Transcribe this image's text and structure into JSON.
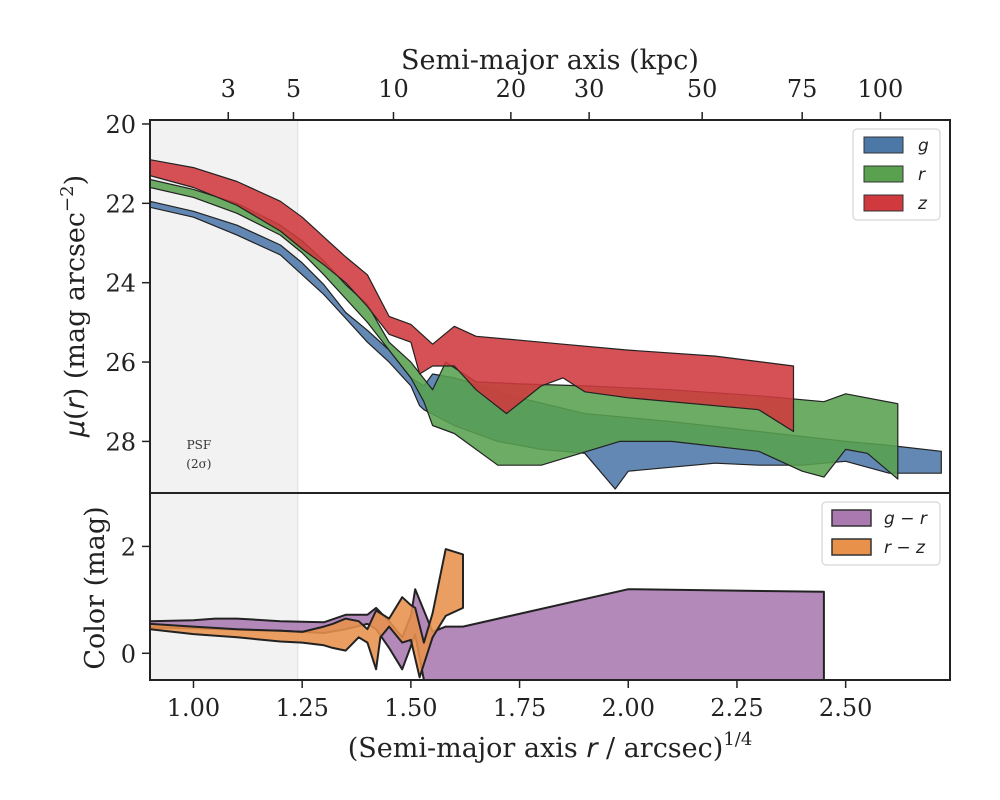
{
  "chart_data": [
    {
      "type": "area",
      "panel": "surface-brightness",
      "title": "",
      "xlabel": "(Semi-major axis r / arcsec)^1/4",
      "ylabel": "μ(r) (mag arcsec^-2)",
      "top_xlabel": "Semi-major axis (kpc)",
      "xlim": [
        0.9,
        2.74
      ],
      "ylim": [
        29.3,
        19.9
      ],
      "y_inverted": true,
      "yticks": [
        20,
        22,
        24,
        26,
        28
      ],
      "top_ticks": [
        {
          "label": "3",
          "x": 1.08
        },
        {
          "label": "5",
          "x": 1.23
        },
        {
          "label": "10",
          "x": 1.46
        },
        {
          "label": "20",
          "x": 1.73
        },
        {
          "label": "30",
          "x": 1.91
        },
        {
          "label": "50",
          "x": 2.17
        },
        {
          "label": "75",
          "x": 2.4
        },
        {
          "label": "100",
          "x": 2.58
        }
      ],
      "psf_band": {
        "x": [
          0.9,
          1.24
        ],
        "label_line1": "PSF",
        "label_line2": "(2σ)"
      },
      "legend": "top-right",
      "series": [
        {
          "name": "g",
          "color": "#4c78a8",
          "upper": [
            [
              0.9,
              21.95
            ],
            [
              1.0,
              22.2
            ],
            [
              1.1,
              22.55
            ],
            [
              1.2,
              23.05
            ],
            [
              1.25,
              23.5
            ],
            [
              1.3,
              24.05
            ],
            [
              1.35,
              24.75
            ],
            [
              1.4,
              25.2
            ],
            [
              1.45,
              25.7
            ],
            [
              1.5,
              26.4
            ],
            [
              1.53,
              26.6
            ],
            [
              1.55,
              26.3
            ],
            [
              1.6,
              26.4
            ],
            [
              1.75,
              26.9
            ],
            [
              1.9,
              27.3
            ],
            [
              2.1,
              27.5
            ],
            [
              2.3,
              27.75
            ],
            [
              2.5,
              28.0
            ],
            [
              2.6,
              28.1
            ],
            [
              2.72,
              28.25
            ]
          ],
          "lower": [
            [
              2.72,
              28.8
            ],
            [
              2.6,
              28.8
            ],
            [
              2.5,
              28.5
            ],
            [
              2.45,
              28.55
            ],
            [
              2.4,
              28.6
            ],
            [
              2.3,
              28.6
            ],
            [
              2.2,
              28.55
            ],
            [
              2.1,
              28.65
            ],
            [
              2.0,
              28.75
            ],
            [
              1.97,
              29.2
            ],
            [
              1.9,
              28.3
            ],
            [
              1.8,
              28.2
            ],
            [
              1.7,
              28.0
            ],
            [
              1.6,
              27.6
            ],
            [
              1.53,
              27.2
            ],
            [
              1.52,
              27.1
            ],
            [
              1.5,
              26.6
            ],
            [
              1.45,
              26.0
            ],
            [
              1.4,
              25.5
            ],
            [
              1.35,
              24.9
            ],
            [
              1.3,
              24.3
            ],
            [
              1.25,
              23.8
            ],
            [
              1.2,
              23.3
            ],
            [
              1.1,
              22.8
            ],
            [
              1.0,
              22.35
            ],
            [
              0.9,
              22.1
            ]
          ]
        },
        {
          "name": "r",
          "color": "#59a14f",
          "upper": [
            [
              0.9,
              21.4
            ],
            [
              1.0,
              21.65
            ],
            [
              1.1,
              22.0
            ],
            [
              1.2,
              22.55
            ],
            [
              1.25,
              22.95
            ],
            [
              1.3,
              23.45
            ],
            [
              1.35,
              24.05
            ],
            [
              1.4,
              24.55
            ],
            [
              1.45,
              25.5
            ],
            [
              1.5,
              26.0
            ],
            [
              1.55,
              26.7
            ],
            [
              1.58,
              26.0
            ],
            [
              1.65,
              26.5
            ],
            [
              1.75,
              26.55
            ],
            [
              1.9,
              26.6
            ],
            [
              2.1,
              26.7
            ],
            [
              2.3,
              26.85
            ],
            [
              2.45,
              27.0
            ],
            [
              2.5,
              26.8
            ],
            [
              2.62,
              27.05
            ]
          ],
          "lower": [
            [
              2.62,
              28.95
            ],
            [
              2.55,
              28.3
            ],
            [
              2.5,
              28.2
            ],
            [
              2.45,
              28.9
            ],
            [
              2.4,
              28.75
            ],
            [
              2.3,
              28.25
            ],
            [
              2.1,
              28.0
            ],
            [
              1.98,
              28.0
            ],
            [
              1.8,
              28.6
            ],
            [
              1.7,
              28.6
            ],
            [
              1.6,
              27.8
            ],
            [
              1.55,
              27.6
            ],
            [
              1.53,
              27.0
            ],
            [
              1.5,
              26.4
            ],
            [
              1.45,
              25.7
            ],
            [
              1.4,
              25.0
            ],
            [
              1.35,
              24.4
            ],
            [
              1.3,
              23.8
            ],
            [
              1.25,
              23.25
            ],
            [
              1.2,
              22.8
            ],
            [
              1.1,
              22.25
            ],
            [
              1.0,
              21.85
            ],
            [
              0.9,
              21.6
            ]
          ]
        },
        {
          "name": "z",
          "color": "#d0393e",
          "upper": [
            [
              0.9,
              20.9
            ],
            [
              1.0,
              21.1
            ],
            [
              1.1,
              21.45
            ],
            [
              1.2,
              21.95
            ],
            [
              1.25,
              22.35
            ],
            [
              1.3,
              22.85
            ],
            [
              1.35,
              23.35
            ],
            [
              1.4,
              23.8
            ],
            [
              1.45,
              24.85
            ],
            [
              1.5,
              25.05
            ],
            [
              1.55,
              25.55
            ],
            [
              1.6,
              25.1
            ],
            [
              1.65,
              25.35
            ],
            [
              1.75,
              25.45
            ],
            [
              1.85,
              25.55
            ],
            [
              2.0,
              25.7
            ],
            [
              2.2,
              25.85
            ],
            [
              2.38,
              26.1
            ]
          ],
          "lower": [
            [
              2.38,
              27.75
            ],
            [
              2.3,
              27.2
            ],
            [
              2.0,
              26.9
            ],
            [
              1.9,
              26.75
            ],
            [
              1.85,
              26.4
            ],
            [
              1.8,
              26.6
            ],
            [
              1.72,
              27.3
            ],
            [
              1.65,
              26.7
            ],
            [
              1.6,
              26.1
            ],
            [
              1.55,
              26.1
            ],
            [
              1.52,
              26.3
            ],
            [
              1.5,
              25.5
            ],
            [
              1.45,
              25.3
            ],
            [
              1.4,
              24.6
            ],
            [
              1.35,
              24.0
            ],
            [
              1.3,
              23.55
            ],
            [
              1.25,
              23.15
            ],
            [
              1.2,
              22.7
            ],
            [
              1.1,
              22.05
            ],
            [
              1.0,
              21.6
            ],
            [
              0.9,
              21.3
            ]
          ]
        }
      ]
    },
    {
      "type": "area",
      "panel": "color",
      "title": "",
      "xlabel": "(Semi-major axis r / arcsec)^1/4",
      "ylabel": "Color (mag)",
      "xlim": [
        0.9,
        2.74
      ],
      "ylim": [
        -0.5,
        3.0
      ],
      "yticks": [
        0,
        2
      ],
      "xticks": [
        1.0,
        1.25,
        1.5,
        1.75,
        2.0,
        2.25,
        2.5
      ],
      "xtick_labels": [
        "1.00",
        "1.25",
        "1.50",
        "1.75",
        "2.00",
        "2.25",
        "2.50"
      ],
      "legend": "top-right",
      "series": [
        {
          "name": "g − r",
          "color": "#a979b0",
          "upper": [
            [
              0.9,
              0.6
            ],
            [
              1.0,
              0.62
            ],
            [
              1.05,
              0.65
            ],
            [
              1.1,
              0.65
            ],
            [
              1.2,
              0.6
            ],
            [
              1.3,
              0.58
            ],
            [
              1.35,
              0.72
            ],
            [
              1.4,
              0.72
            ],
            [
              1.42,
              0.85
            ],
            [
              1.45,
              0.6
            ],
            [
              1.48,
              0.3
            ],
            [
              1.5,
              0.7
            ],
            [
              1.51,
              1.2
            ],
            [
              1.55,
              0.4
            ],
            [
              1.58,
              0.5
            ],
            [
              1.62,
              0.5
            ],
            [
              2.0,
              1.2
            ],
            [
              2.45,
              1.15
            ]
          ],
          "lower": [
            [
              2.45,
              -0.5
            ],
            [
              1.53,
              -0.5
            ],
            [
              1.51,
              0.35
            ],
            [
              1.48,
              -0.3
            ],
            [
              1.45,
              0.1
            ],
            [
              1.42,
              0.45
            ],
            [
              1.4,
              0.55
            ],
            [
              1.35,
              0.45
            ],
            [
              1.3,
              0.38
            ],
            [
              1.2,
              0.42
            ],
            [
              1.1,
              0.44
            ],
            [
              1.0,
              0.47
            ],
            [
              0.9,
              0.48
            ]
          ]
        },
        {
          "name": "r − z",
          "color": "#e8914b",
          "upper": [
            [
              0.9,
              0.55
            ],
            [
              1.0,
              0.5
            ],
            [
              1.1,
              0.45
            ],
            [
              1.2,
              0.42
            ],
            [
              1.25,
              0.4
            ],
            [
              1.3,
              0.5
            ],
            [
              1.32,
              0.55
            ],
            [
              1.35,
              0.65
            ],
            [
              1.38,
              0.6
            ],
            [
              1.4,
              0.45
            ],
            [
              1.42,
              0.8
            ],
            [
              1.45,
              0.65
            ],
            [
              1.48,
              1.05
            ],
            [
              1.5,
              0.9
            ],
            [
              1.51,
              0.85
            ],
            [
              1.53,
              0.2
            ],
            [
              1.55,
              0.75
            ],
            [
              1.58,
              1.95
            ],
            [
              1.62,
              1.85
            ]
          ],
          "lower": [
            [
              1.62,
              0.85
            ],
            [
              1.58,
              0.7
            ],
            [
              1.55,
              0.3
            ],
            [
              1.52,
              -0.45
            ],
            [
              1.5,
              0.25
            ],
            [
              1.48,
              0.2
            ],
            [
              1.45,
              0.5
            ],
            [
              1.43,
              0.3
            ],
            [
              1.42,
              -0.3
            ],
            [
              1.4,
              0.2
            ],
            [
              1.38,
              0.3
            ],
            [
              1.35,
              0.05
            ],
            [
              1.32,
              0.1
            ],
            [
              1.3,
              0.15
            ],
            [
              1.25,
              0.2
            ],
            [
              1.2,
              0.22
            ],
            [
              1.1,
              0.3
            ],
            [
              1.0,
              0.36
            ],
            [
              0.9,
              0.45
            ]
          ]
        }
      ]
    }
  ]
}
